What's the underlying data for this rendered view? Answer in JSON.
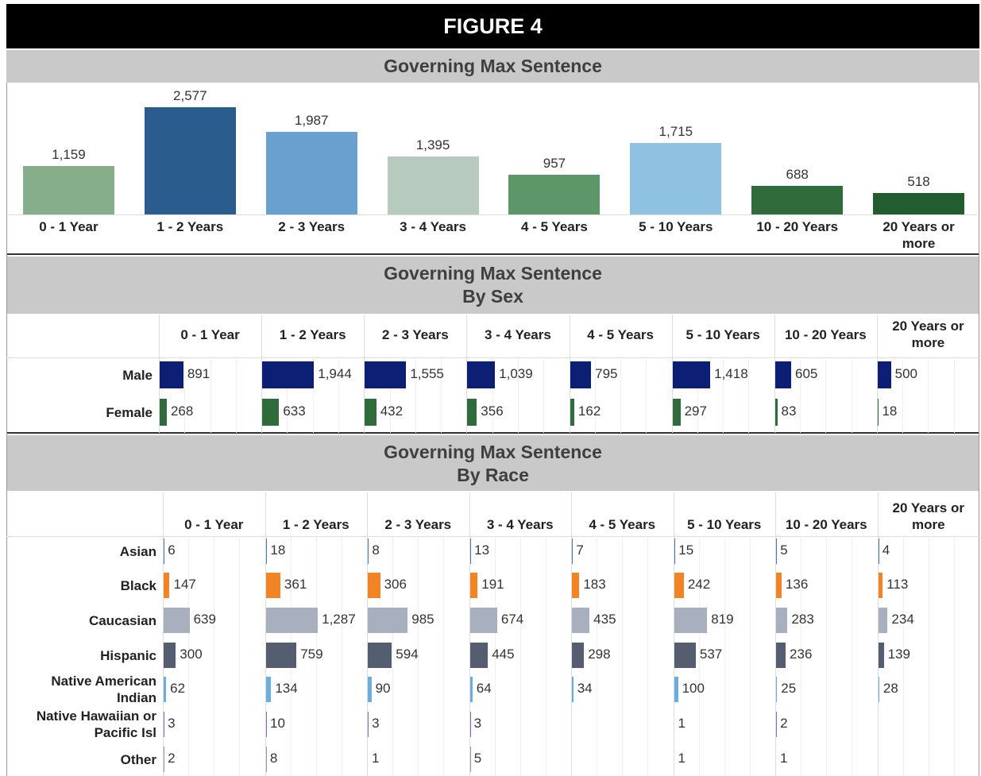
{
  "figure_title": "FIGURE 4",
  "chart_data": [
    {
      "type": "bar",
      "title": "Governing Max Sentence",
      "categories": [
        "0 - 1 Year",
        "1 - 2 Years",
        "2 - 3 Years",
        "3 - 4 Years",
        "4 - 5 Years",
        "5 - 10 Years",
        "10 - 20 Years",
        "20 Years or more"
      ],
      "values": [
        1159,
        2577,
        1987,
        1395,
        957,
        1715,
        688,
        518
      ],
      "value_labels": [
        "1,159",
        "2,577",
        "1,987",
        "1,395",
        "957",
        "1,715",
        "688",
        "518"
      ],
      "colors": [
        "#86ae8b",
        "#2b5c8e",
        "#69a0cd",
        "#b6cbbd",
        "#5d9769",
        "#8fc2e1",
        "#2f6b3b",
        "#215d2f"
      ]
    },
    {
      "type": "bar-matrix",
      "title": "Governing Max Sentence",
      "subtitle": "By Sex",
      "categories": [
        "0 - 1 Year",
        "1 - 2 Years",
        "2 - 3 Years",
        "3 - 4 Years",
        "4 - 5 Years",
        "5 - 10 Years",
        "10 - 20 Years",
        "20 Years or more"
      ],
      "series": [
        {
          "name": "Male",
          "color": "#0c1f74",
          "values": [
            891,
            1944,
            1555,
            1039,
            795,
            1418,
            605,
            500
          ],
          "value_labels": [
            "891",
            "1,944",
            "1,555",
            "1,039",
            "795",
            "1,418",
            "605",
            "500"
          ]
        },
        {
          "name": "Female",
          "color": "#2f6b3b",
          "values": [
            268,
            633,
            432,
            356,
            162,
            297,
            83,
            18
          ],
          "value_labels": [
            "268",
            "633",
            "432",
            "356",
            "162",
            "297",
            "83",
            "18"
          ]
        }
      ]
    },
    {
      "type": "bar-matrix",
      "title": "Governing Max Sentence",
      "subtitle": "By Race",
      "categories": [
        "0 - 1 Year",
        "1 - 2 Years",
        "2 - 3 Years",
        "3 - 4 Years",
        "4 - 5 Years",
        "5 - 10 Years",
        "10 - 20 Years",
        "20 Years or more"
      ],
      "series": [
        {
          "name": "Asian",
          "color": "#4e79a7",
          "values": [
            6,
            18,
            8,
            13,
            7,
            15,
            5,
            4
          ],
          "value_labels": [
            "6",
            "18",
            "8",
            "13",
            "7",
            "15",
            "5",
            "4"
          ]
        },
        {
          "name": "Black",
          "color": "#f28423",
          "values": [
            147,
            361,
            306,
            191,
            183,
            242,
            136,
            113
          ],
          "value_labels": [
            "147",
            "361",
            "306",
            "191",
            "183",
            "242",
            "136",
            "113"
          ]
        },
        {
          "name": "Caucasian",
          "color": "#a8b0c0",
          "values": [
            639,
            1287,
            985,
            674,
            435,
            819,
            283,
            234
          ],
          "value_labels": [
            "639",
            "1,287",
            "985",
            "674",
            "435",
            "819",
            "283",
            "234"
          ]
        },
        {
          "name": "Hispanic",
          "color": "#555e70",
          "values": [
            300,
            759,
            594,
            445,
            298,
            537,
            236,
            139
          ],
          "value_labels": [
            "300",
            "759",
            "594",
            "445",
            "298",
            "537",
            "236",
            "139"
          ]
        },
        {
          "name": "Native American Indian",
          "color": "#6aaee0",
          "values": [
            62,
            134,
            90,
            64,
            34,
            100,
            25,
            28
          ],
          "value_labels": [
            "62",
            "134",
            "90",
            "64",
            "34",
            "100",
            "25",
            "28"
          ]
        },
        {
          "name": "Native Hawaiian or Pacific Isl",
          "color": "#8a6cbf",
          "values": [
            3,
            10,
            3,
            3,
            null,
            1,
            2,
            null
          ],
          "value_labels": [
            "3",
            "10",
            "3",
            "3",
            null,
            "1",
            "2",
            null
          ]
        },
        {
          "name": "Other",
          "color": "#999999",
          "values": [
            2,
            8,
            1,
            5,
            null,
            1,
            1,
            null
          ],
          "value_labels": [
            "2",
            "8",
            "1",
            "5",
            null,
            "1",
            "1",
            null
          ]
        }
      ]
    }
  ]
}
